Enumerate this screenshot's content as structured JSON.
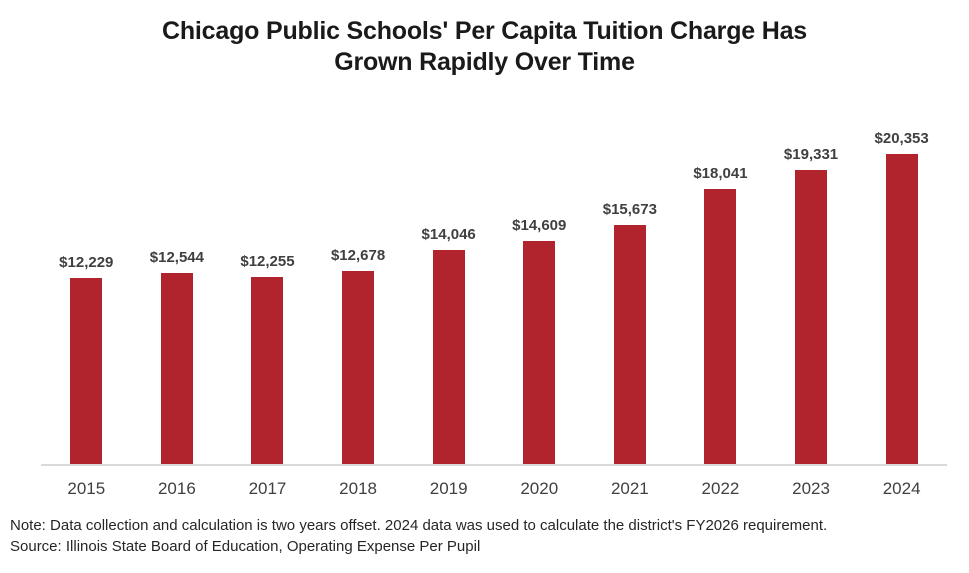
{
  "title_lines": [
    "Chicago Public Schools' Per Capita Tuition Charge Has",
    "Grown Rapidly Over Time"
  ],
  "chart_data": {
    "type": "bar",
    "title": "Chicago Public Schools' Per Capita Tuition Charge Has Grown Rapidly Over Time",
    "categories": [
      "2015",
      "2016",
      "2017",
      "2018",
      "2019",
      "2020",
      "2021",
      "2022",
      "2023",
      "2024"
    ],
    "values": [
      12229,
      12544,
      12255,
      12678,
      14046,
      14609,
      15673,
      18041,
      19331,
      20353
    ],
    "labels": [
      "$12,229",
      "$12,544",
      "$12,255",
      "$12,678",
      "$14,046",
      "$14,609",
      "$15,673",
      "$18,041",
      "$19,331",
      "$20,353"
    ],
    "xlabel": "",
    "ylabel": "",
    "ylim": [
      0,
      20353
    ],
    "grid": false,
    "legend": false,
    "bar_color": "#B1242E",
    "value_label_color": "#404040",
    "tick_label_color": "#404040",
    "axis_line_color": "#D9D9D9",
    "title_color": "#1a1a1a"
  },
  "notes": {
    "note": "Note: Data collection and calculation is two years offset. 2024 data was used to calculate the district's FY2026 requirement.",
    "source": "Source: Illinois State Board of Education, Operating Expense Per Pupil"
  }
}
